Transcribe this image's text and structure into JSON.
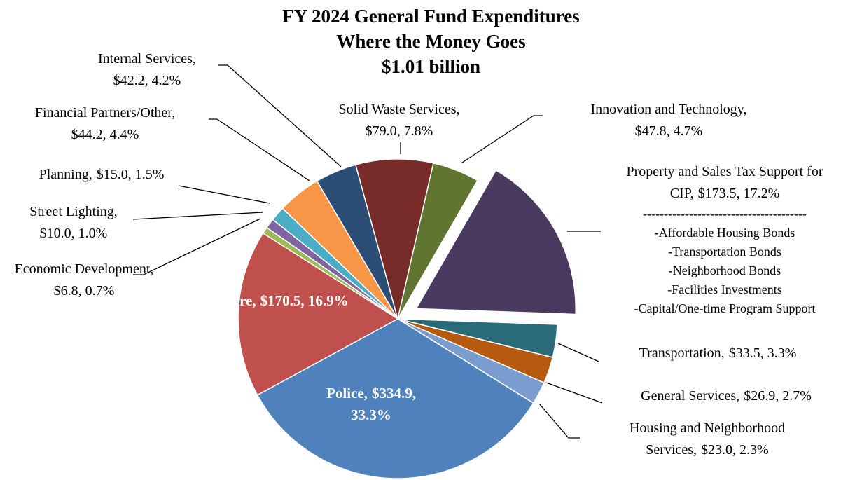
{
  "chart_data": {
    "type": "pie",
    "title": "FY 2024 General Fund Expenditures",
    "subtitle": "Where the Money Goes",
    "total_label": "$1.01 billion",
    "categories": [
      "Property and Sales Tax Support for CIP,",
      "Transportation,",
      "General Services,",
      "Housing and Neighborhood Services,",
      "Police,",
      "Fire,",
      "Economic Development,",
      "Street Lighting,",
      "Planning,",
      "Financial Partners/Other,",
      "Internal Services,",
      "Solid Waste Services,",
      "Innovation and Technology,"
    ],
    "values": [
      173.5,
      33.5,
      26.9,
      23.0,
      334.9,
      170.5,
      6.8,
      10.0,
      15.0,
      44.2,
      42.2,
      79.0,
      47.8
    ],
    "value_labels": [
      "$173.5, 17.2%",
      "$33.5, 3.3%",
      "$26.9, 2.7%",
      "$23.0, 2.3%",
      "$334.9, 33.3%",
      "$170.5, 16.9%",
      "$6.8, 0.7%",
      "$10.0, 1.0%",
      "$15.0, 1.5%",
      "$44.2, 4.4%",
      "$42.2, 4.2%",
      "$79.0, 7.8%",
      "$47.8, 4.7%"
    ],
    "colors": [
      "#4b3a60",
      "#2a6b7a",
      "#b55a0f",
      "#7a9ccf",
      "#4f81bd",
      "#c0504d",
      "#9bbb59",
      "#8064a2",
      "#4bacc6",
      "#f79646",
      "#2c4d75",
      "#772c2a",
      "#5f7530"
    ],
    "explode": [
      true,
      false,
      false,
      false,
      false,
      false,
      false,
      false,
      false,
      false,
      false,
      false,
      false
    ],
    "notes": [
      "---------------------------------------",
      "-Affordable Housing Bonds",
      "-Transportation Bonds",
      "-Neighborhood Bonds",
      "-Facilities Investments",
      "-Capital/One-time Program Support"
    ]
  }
}
